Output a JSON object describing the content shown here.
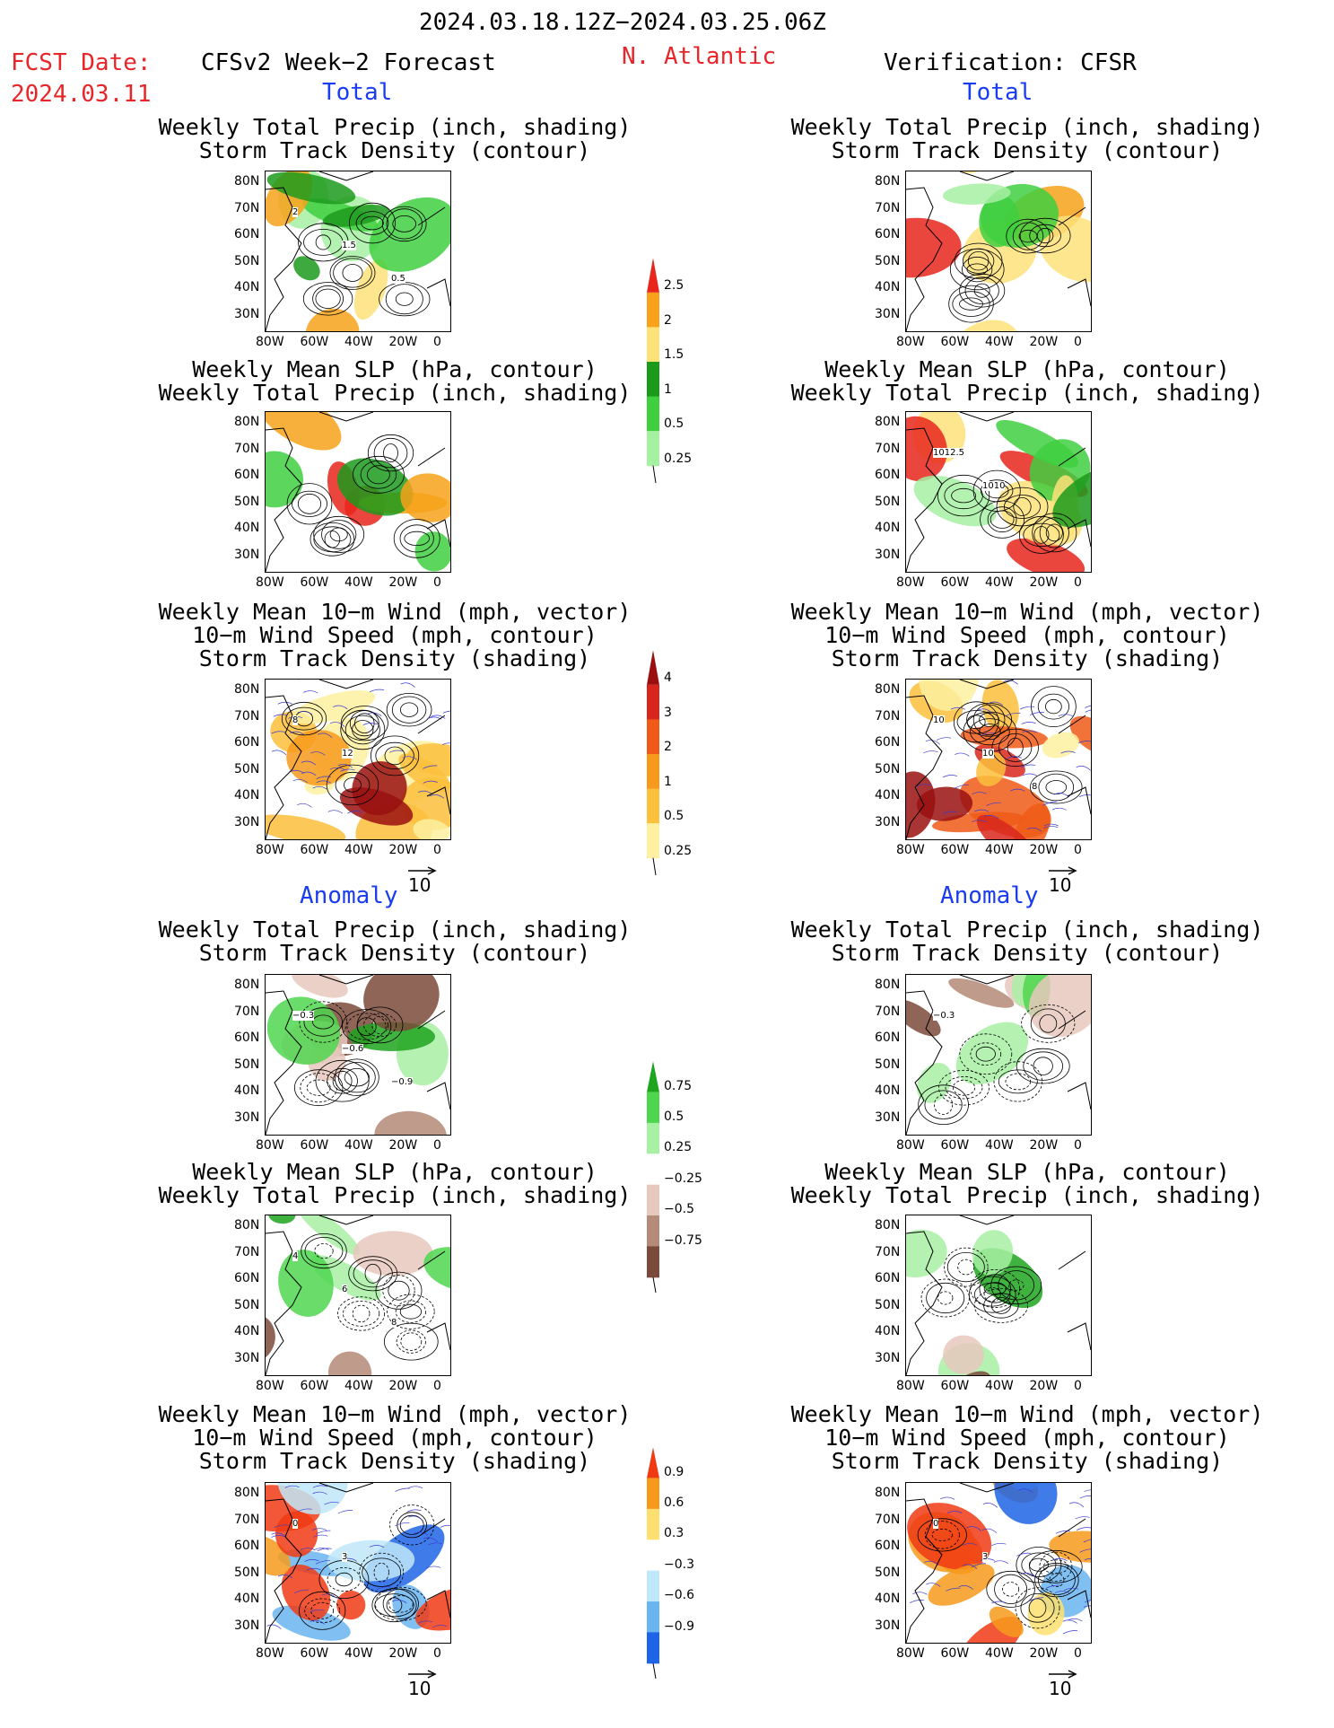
{
  "header": {
    "date_range": "2024.03.18.12Z−2024.03.25.06Z",
    "fcst_label": "FCST Date:",
    "fcst_date": "2024.03.11",
    "forecast_title": "CFSv2 Week−2 Forecast",
    "region": "N. Atlantic",
    "verification_title": "Verification: CFSR"
  },
  "sections": {
    "total": "Total",
    "anomaly": "Anomaly"
  },
  "panel_titles": {
    "precip_track": [
      "Weekly Total Precip (inch, shading)",
      "Storm Track Density (contour)"
    ],
    "slp_precip": [
      "Weekly Mean SLP (hPa, contour)",
      "Weekly Total Precip (inch, shading)"
    ],
    "wind_track": [
      "Weekly Mean 10−m Wind (mph, vector)",
      "10−m Wind Speed (mph, contour)",
      "Storm Track Density (shading)"
    ]
  },
  "axes": {
    "lat_ticks": [
      "80N",
      "70N",
      "60N",
      "50N",
      "40N",
      "30N"
    ],
    "lon_ticks": [
      "80W",
      "60W",
      "40W",
      "20W",
      "0"
    ]
  },
  "vector_reference": "10",
  "colorbars": {
    "precip_total": {
      "labels": [
        "2.5",
        "2",
        "1.5",
        "1",
        "0.5",
        "0.25"
      ],
      "colors": [
        "#e8261c",
        "#f7a21a",
        "#fde27a",
        "#1c9a1c",
        "#3fcf3f",
        "#a6f0a2"
      ]
    },
    "track_total": {
      "labels": [
        "4",
        "3",
        "2",
        "1",
        "0.5",
        "0.25"
      ],
      "colors": [
        "#9a1010",
        "#d8261c",
        "#f05a18",
        "#f79a1c",
        "#fbc03c",
        "#fdf0a0"
      ]
    },
    "precip_anom": {
      "labels": [
        "0.75",
        "0.5",
        "0.25",
        "−0.25",
        "−0.5",
        "−0.75"
      ],
      "colors": [
        "#1ea51e",
        "#4fd64f",
        "#a8f0a4",
        "#ffffff",
        "#e6c8bc",
        "#b48a78",
        "#7a4a3a"
      ]
    },
    "track_anom": {
      "labels": [
        "0.9",
        "0.6",
        "0.3",
        "−0.3",
        "−0.6",
        "−0.9"
      ],
      "colors": [
        "#f03a14",
        "#f79a1c",
        "#fde070",
        "#ffffff",
        "#bfe8f8",
        "#6ab4f0",
        "#1e64e6"
      ]
    }
  },
  "contour_labels": {
    "f_tot_track": [
      "2",
      "1.5",
      "0.5"
    ],
    "v_tot_slp": [
      "1012.5",
      "1010"
    ],
    "f_tot_wind": [
      "8",
      "12"
    ],
    "v_tot_wind": [
      "10",
      "10",
      "8"
    ],
    "f_anom_track": [
      "−0.3",
      "−0.6",
      "−0.9"
    ],
    "v_anom_track": [
      "−0.3"
    ],
    "f_anom_slp": [
      "4",
      "6",
      "8"
    ],
    "f_anom_wind": [
      "0",
      "3"
    ],
    "v_anom_wind": [
      "0",
      "3"
    ]
  }
}
